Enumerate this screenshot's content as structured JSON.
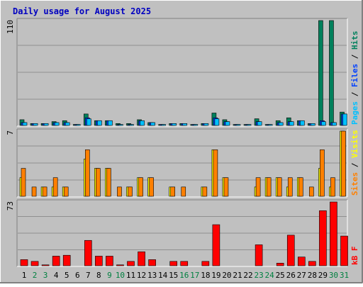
{
  "title": "Daily usage for August 2025",
  "colors": {
    "background": "#C0C0C0",
    "frame_light": "#FFFFFF",
    "frame_dark": "#808080",
    "title": "#0000C0",
    "grid": "#909090",
    "weekend_label": "#008040",
    "hits": "#00805C",
    "files": "#0040FF",
    "pages": "#00C0FF",
    "visits": "#FFFF00",
    "sites": "#FF8000",
    "kbytes": "#FF0000"
  },
  "chart_data": [
    {
      "type": "bar",
      "name": "hits-files-pages",
      "max_label": "110",
      "ymax": 110,
      "ylabel_parts": [
        {
          "text": "Pages",
          "color": "#00C0FF"
        },
        {
          "text": " / ",
          "color": "#000000"
        },
        {
          "text": "Files",
          "color": "#0040FF"
        },
        {
          "text": " / ",
          "color": "#000000"
        },
        {
          "text": "Hits",
          "color": "#00805C"
        }
      ],
      "categories": [
        "1",
        "2",
        "3",
        "4",
        "5",
        "6",
        "7",
        "8",
        "9",
        "10",
        "11",
        "12",
        "13",
        "14",
        "15",
        "16",
        "17",
        "18",
        "19",
        "20",
        "21",
        "22",
        "23",
        "24",
        "25",
        "26",
        "27",
        "28",
        "29",
        "30",
        "31"
      ],
      "weekend_days": [
        "2",
        "3",
        "9",
        "10",
        "16",
        "17",
        "23",
        "24",
        "30",
        "31"
      ],
      "series": [
        {
          "name": "Hits",
          "color": "#00805C",
          "values": [
            6,
            2,
            2,
            4,
            5,
            1,
            12,
            5,
            5,
            2,
            2,
            6,
            3,
            1,
            2,
            2,
            1,
            2,
            13,
            6,
            1,
            1,
            7,
            1,
            5,
            8,
            5,
            2,
            110,
            110,
            14
          ]
        },
        {
          "name": "Files",
          "color": "#0040FF",
          "values": [
            3,
            2,
            2,
            3,
            3,
            1,
            8,
            5,
            5,
            1,
            1,
            5,
            3,
            1,
            2,
            2,
            1,
            2,
            8,
            4,
            1,
            1,
            4,
            1,
            3,
            4,
            5,
            2,
            5,
            3,
            12
          ]
        },
        {
          "name": "Pages",
          "color": "#00C0FF",
          "values": [
            3,
            2,
            2,
            3,
            3,
            1,
            7,
            5,
            5,
            1,
            1,
            5,
            3,
            1,
            2,
            2,
            1,
            2,
            7,
            4,
            1,
            1,
            4,
            1,
            3,
            4,
            5,
            2,
            4,
            3,
            12
          ]
        }
      ]
    },
    {
      "type": "bar",
      "name": "sites-visits",
      "max_label": "7",
      "ymax": 7,
      "ylabel_parts": [
        {
          "text": "Sites",
          "color": "#FF8000"
        },
        {
          "text": " / ",
          "color": "#000000"
        },
        {
          "text": "Visits",
          "color": "#FFFF00"
        }
      ],
      "categories": [
        "1",
        "2",
        "3",
        "4",
        "5",
        "6",
        "7",
        "8",
        "9",
        "10",
        "11",
        "12",
        "13",
        "14",
        "15",
        "16",
        "17",
        "18",
        "19",
        "20",
        "21",
        "22",
        "23",
        "24",
        "25",
        "26",
        "27",
        "28",
        "29",
        "30",
        "31"
      ],
      "weekend_days": [
        "2",
        "3",
        "9",
        "10",
        "16",
        "17",
        "23",
        "24",
        "30",
        "31"
      ],
      "series": [
        {
          "name": "Visits",
          "color": "#FFFF00",
          "values": [
            2,
            0,
            1,
            1,
            1,
            0,
            4,
            3,
            3,
            0,
            1,
            2,
            2,
            0,
            1,
            0,
            0,
            1,
            5,
            2,
            0,
            0,
            1,
            2,
            2,
            1,
            2,
            0,
            3,
            1,
            7
          ]
        },
        {
          "name": "Sites",
          "color": "#FF8000",
          "values": [
            3,
            1,
            1,
            2,
            1,
            0,
            5,
            3,
            3,
            1,
            1,
            2,
            2,
            0,
            1,
            1,
            0,
            1,
            5,
            2,
            0,
            0,
            2,
            2,
            2,
            2,
            2,
            1,
            5,
            2,
            7
          ]
        }
      ]
    },
    {
      "type": "bar",
      "name": "kbytes",
      "max_label": "73",
      "ymax": 73,
      "ylabel_parts": [
        {
          "text": "kB F",
          "color": "#FF0000"
        }
      ],
      "categories": [
        "1",
        "2",
        "3",
        "4",
        "5",
        "6",
        "7",
        "8",
        "9",
        "10",
        "11",
        "12",
        "13",
        "14",
        "15",
        "16",
        "17",
        "18",
        "19",
        "20",
        "21",
        "22",
        "23",
        "24",
        "25",
        "26",
        "27",
        "28",
        "29",
        "30",
        "31"
      ],
      "weekend_days": [
        "2",
        "3",
        "9",
        "10",
        "16",
        "17",
        "23",
        "24",
        "30",
        "31"
      ],
      "series": [
        {
          "name": "kB F",
          "color": "#FF0000",
          "values": [
            7,
            5,
            1,
            11,
            12,
            0,
            29,
            11,
            11,
            1,
            5,
            16,
            7,
            0,
            5,
            5,
            0,
            5,
            47,
            0,
            0,
            0,
            24,
            0,
            3,
            35,
            10,
            5,
            63,
            73,
            34
          ]
        }
      ]
    }
  ]
}
